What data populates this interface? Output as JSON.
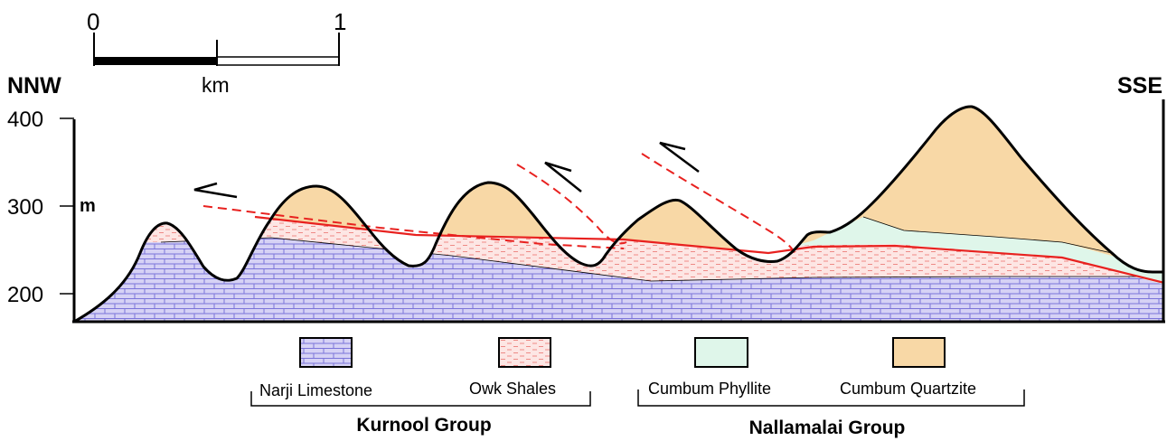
{
  "scale_bar": {
    "start_label": "0",
    "end_label": "1",
    "unit_label": "km"
  },
  "orientation": {
    "left": "NNW",
    "right": "SSE"
  },
  "elevation_axis": {
    "unit_label": "m",
    "ticks": [
      "400",
      "300",
      "200"
    ]
  },
  "legend": {
    "units": [
      {
        "label": "Narji Limestone",
        "fill": "#d6d2f5",
        "pattern": "brick"
      },
      {
        "label": "Owk Shales",
        "fill": "#fde6e4",
        "pattern": "dashes"
      },
      {
        "label": "Cumbum Phyllite",
        "fill": "#dff6ea",
        "pattern": "none"
      },
      {
        "label": "Cumbum Quartzite",
        "fill": "#f8d8a6",
        "pattern": "none"
      }
    ],
    "groups": [
      {
        "label": "Kurnool Group"
      },
      {
        "label": "Nallamalai Group"
      }
    ]
  },
  "colors": {
    "unconformity": "#e8211f",
    "fault": "#e8211f",
    "topography": "#000000",
    "limestone_brick": "#7b74d9"
  }
}
